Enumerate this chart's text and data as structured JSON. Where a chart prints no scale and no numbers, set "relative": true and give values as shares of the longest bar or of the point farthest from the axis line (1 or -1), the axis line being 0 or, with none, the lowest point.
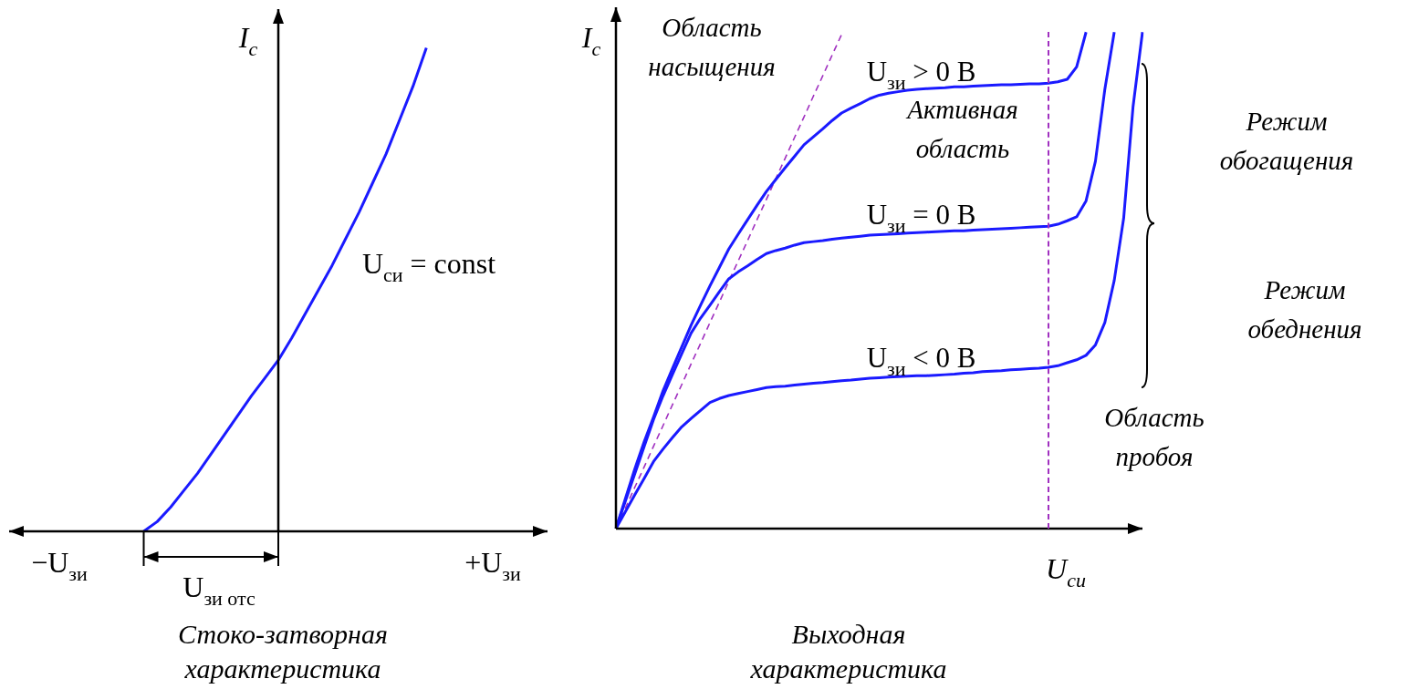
{
  "chart_data": [
    {
      "type": "line",
      "relative": true,
      "tick_labels": false,
      "marker": "none",
      "ylabel": "I$_{с}$",
      "title": "Стоко-затворная характеристика",
      "annotations": [
        "−U$_{зи}$",
        "+U$_{зи}$",
        "U$_{зи отс}$",
        "U$_{си}$ = const"
      ],
      "categories": [
        null,
        null,
        null,
        null,
        null,
        null,
        null,
        null,
        null,
        null,
        null,
        null,
        null,
        null,
        null,
        null,
        null,
        null,
        null,
        null,
        null,
        null,
        null,
        null,
        null,
        null,
        null,
        null,
        null,
        null,
        null,
        null,
        null,
        null,
        null,
        null,
        null,
        null,
        null,
        null,
        null
      ],
      "series": [
        {
          "color": "#1a1aff",
          "values": [
            null,
            null,
            null,
            null,
            null,
            null,
            null,
            null,
            null,
            null,
            0,
            0.02,
            0.05,
            0.085,
            0.12,
            0.16,
            0.2,
            0.24,
            0.28,
            0.317,
            0.354,
            0.4,
            0.45,
            0.5,
            0.55,
            0.605,
            0.66,
            0.72,
            0.78,
            0.85,
            0.92,
            1.0,
            null,
            null,
            null,
            null,
            null,
            null,
            null,
            null,
            null
          ]
        }
      ]
    },
    {
      "type": "line",
      "relative": true,
      "tick_labels": false,
      "marker": "none",
      "ylabel": "I$_{с}$",
      "xlabel": "U$_{си}$",
      "title": "Выходная характеристика",
      "annotations": [
        "Область насыщения",
        "Активная область",
        "Область пробоя",
        "Режим обогащения",
        "Режим обеднения"
      ],
      "categories": [
        null,
        null,
        null,
        null,
        null,
        null,
        null,
        null,
        null,
        null,
        null,
        null,
        null,
        null,
        null,
        null,
        null,
        null,
        null,
        null,
        null,
        null,
        null,
        null,
        null,
        null,
        null,
        null,
        null,
        null,
        null,
        null,
        null,
        null,
        null,
        null,
        null,
        null,
        null,
        null,
        null,
        null,
        null,
        null,
        null,
        null,
        null,
        null,
        null,
        null,
        null,
        null,
        null,
        null,
        null,
        null,
        null
      ],
      "series": [
        {
          "name": "U$_{зи}$ > 0 В",
          "color": "#1a1aff",
          "values": [
            0,
            0.06,
            0.12,
            0.175,
            0.225,
            0.277,
            0.322,
            0.366,
            0.41,
            0.45,
            0.489,
            0.526,
            0.563,
            0.593,
            0.622,
            0.651,
            0.679,
            0.703,
            0.727,
            0.75,
            0.773,
            0.789,
            0.805,
            0.822,
            0.837,
            0.847,
            0.856,
            0.866,
            0.873,
            0.877,
            0.88,
            0.883,
            0.885,
            0.886,
            0.887,
            0.888,
            0.89,
            0.89,
            0.891,
            0.892,
            0.893,
            0.894,
            0.894,
            0.895,
            0.896,
            0.896,
            0.897,
            0.9,
            0.905,
            0.93,
            1.0,
            null,
            null,
            null,
            null,
            null,
            null
          ]
        },
        {
          "name": "U$_{зи}$ = 0 В",
          "color": "#1a1aff",
          "values": [
            0,
            0.055,
            0.11,
            0.165,
            0.22,
            0.267,
            0.31,
            0.352,
            0.394,
            0.424,
            0.45,
            0.477,
            0.503,
            0.517,
            0.529,
            0.542,
            0.554,
            0.56,
            0.565,
            0.571,
            0.576,
            0.578,
            0.58,
            0.583,
            0.585,
            0.587,
            0.589,
            0.591,
            0.592,
            0.593,
            0.594,
            0.595,
            0.596,
            0.597,
            0.598,
            0.599,
            0.6,
            0.6,
            0.601,
            0.602,
            0.603,
            0.604,
            0.605,
            0.606,
            0.607,
            0.608,
            0.609,
            0.613,
            0.62,
            0.628,
            0.66,
            0.74,
            0.885,
            1.0,
            null,
            null,
            null
          ]
        },
        {
          "name": "U$_{зи}$ < 0 В",
          "color": "#1a1aff",
          "values": [
            0,
            0.034,
            0.068,
            0.101,
            0.135,
            0.16,
            0.183,
            0.205,
            0.222,
            0.238,
            0.254,
            0.262,
            0.268,
            0.272,
            0.276,
            0.28,
            0.284,
            0.286,
            0.287,
            0.289,
            0.291,
            0.293,
            0.294,
            0.296,
            0.298,
            0.299,
            0.301,
            0.303,
            0.304,
            0.305,
            0.306,
            0.307,
            0.308,
            0.308,
            0.309,
            0.31,
            0.311,
            0.313,
            0.314,
            0.316,
            0.317,
            0.318,
            0.32,
            0.321,
            0.322,
            0.323,
            0.325,
            0.328,
            0.334,
            0.34,
            0.349,
            0.37,
            0.415,
            0.5,
            0.625,
            0.85,
            1.0
          ]
        },
        {
          "color": "#a030c0",
          "line_style": "dashed",
          "values": [
            0,
            0.041,
            0.083,
            0.124,
            0.166,
            0.207,
            0.249,
            0.29,
            0.332,
            0.373,
            0.415,
            0.456,
            0.498,
            0.539,
            0.58,
            0.622,
            0.663,
            0.705,
            0.746,
            0.788,
            0.829,
            0.871,
            0.912,
            0.954,
            0.995,
            null,
            null,
            null,
            null,
            null,
            null,
            null,
            null,
            null,
            null,
            null,
            null,
            null,
            null,
            null,
            null,
            null,
            null,
            null,
            null,
            null,
            null,
            null,
            null,
            null,
            null,
            null,
            null,
            null,
            null,
            null,
            null
          ]
        }
      ]
    }
  ]
}
